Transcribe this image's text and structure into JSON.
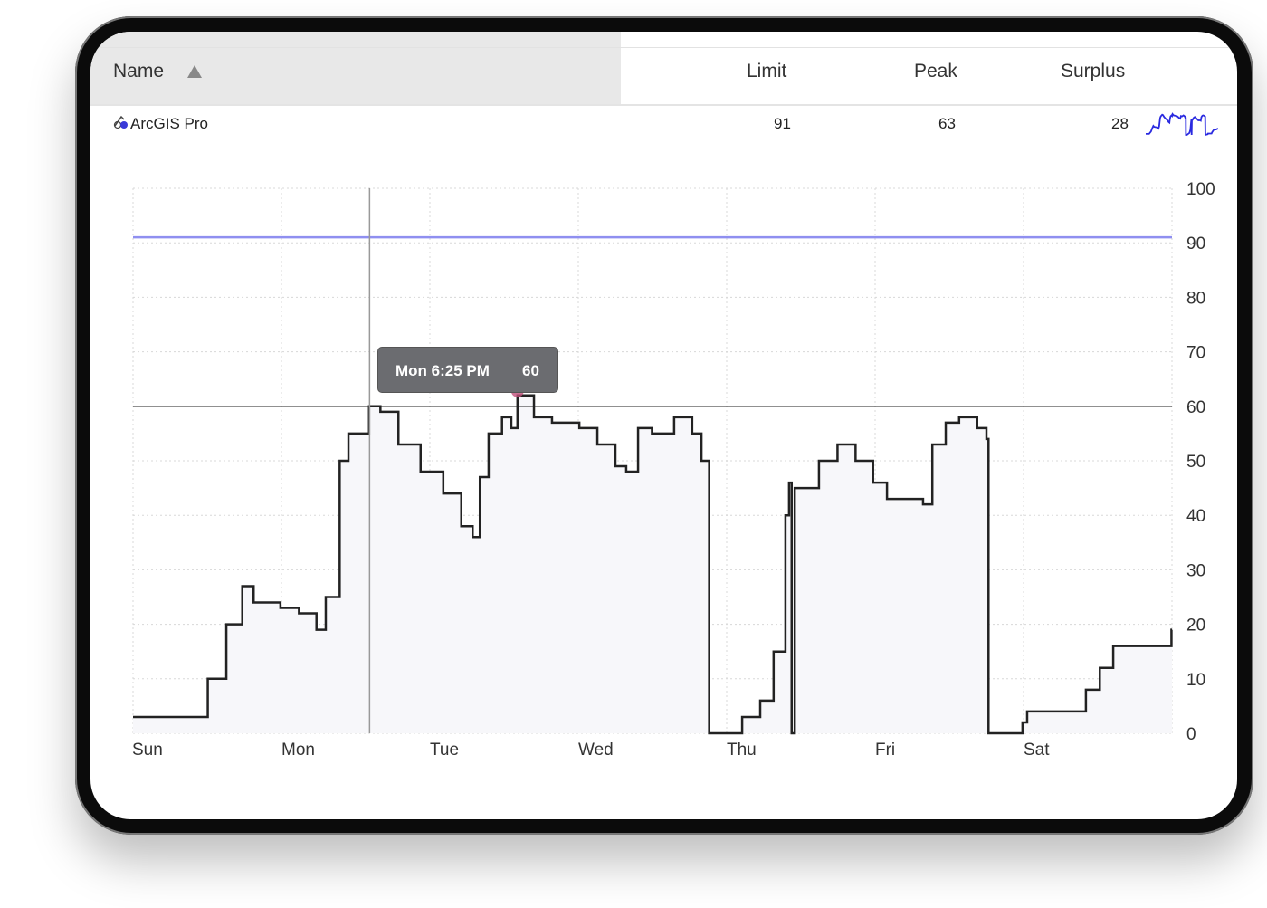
{
  "table": {
    "columns": [
      "Name",
      "Limit",
      "Peak",
      "Surplus"
    ],
    "sort": {
      "column": "Name",
      "direction": "ascending",
      "icon": "triangle-up-icon"
    },
    "rows": [
      {
        "icon": "arcgis-pro-icon",
        "name": "ArcGIS Pro",
        "limit": "91",
        "peak": "63",
        "surplus": "28"
      }
    ]
  },
  "colors": {
    "limit_line": "#8f8ff0",
    "usage_line": "#222222",
    "sparkline": "#2a2ae0",
    "area_fill": "#f7f7fa",
    "highlight": "#c0507a"
  },
  "tooltip": {
    "label": "Mon 6:25 PM",
    "value": "60"
  },
  "chart_data": {
    "type": "line",
    "step": true,
    "x_categories": [
      "Sun",
      "Mon",
      "Tue",
      "Wed",
      "Thu",
      "Fri",
      "Sat"
    ],
    "y_ticks": [
      "0",
      "10",
      "20",
      "30",
      "40",
      "50",
      "60",
      "70",
      "80",
      "90",
      "100"
    ],
    "ylim": [
      0,
      100
    ],
    "y_axis_side": "right",
    "grid": true,
    "reference_lines": [
      {
        "value": 91,
        "color": "#8f8ff0"
      },
      {
        "value": 60,
        "color": "#222222"
      }
    ],
    "cursor": "Mon 14:15",
    "highlight_point": [
      "Tue 14:10",
      62
    ],
    "series": [
      {
        "values": [
          [
            "Sun 00:00",
            3
          ],
          [
            "Sun 07:45",
            3
          ],
          [
            "Sun 12:05",
            10
          ],
          [
            "Sun 15:05",
            20
          ],
          [
            "Sun 17:40",
            27
          ],
          [
            "Sun 19:30",
            24
          ],
          [
            "Sun 23:50",
            23
          ],
          [
            "Mon 02:50",
            22
          ],
          [
            "Mon 05:40",
            19
          ],
          [
            "Mon 07:10",
            25
          ],
          [
            "Mon 09:25",
            50
          ],
          [
            "Mon 10:50",
            55
          ],
          [
            "Mon 14:10",
            60
          ],
          [
            "Mon 16:00",
            59
          ],
          [
            "Mon 18:55",
            53
          ],
          [
            "Mon 22:30",
            48
          ],
          [
            "Tue 02:10",
            44
          ],
          [
            "Tue 05:05",
            38
          ],
          [
            "Tue 06:55",
            36
          ],
          [
            "Tue 08:05",
            47
          ],
          [
            "Tue 09:30",
            55
          ],
          [
            "Tue 11:40",
            58
          ],
          [
            "Tue 13:10",
            56
          ],
          [
            "Tue 14:10",
            62
          ],
          [
            "Tue 16:50",
            58
          ],
          [
            "Tue 19:45",
            57
          ],
          [
            "Wed 00:10",
            56
          ],
          [
            "Wed 03:05",
            53
          ],
          [
            "Wed 06:00",
            49
          ],
          [
            "Wed 07:45",
            48
          ],
          [
            "Wed 09:40",
            56
          ],
          [
            "Wed 11:55",
            55
          ],
          [
            "Wed 15:30",
            58
          ],
          [
            "Wed 18:25",
            55
          ],
          [
            "Wed 19:55",
            50
          ],
          [
            "Wed 21:05",
            50
          ],
          [
            "Wed 21:10",
            0
          ],
          [
            "Wed 23:35",
            0
          ],
          [
            "Thu 02:30",
            3
          ],
          [
            "Thu 05:25",
            6
          ],
          [
            "Thu 07:35",
            15
          ],
          [
            "Thu 09:30",
            40
          ],
          [
            "Thu 10:05",
            46
          ],
          [
            "Thu 10:30",
            0
          ],
          [
            "Thu 11:00",
            45
          ],
          [
            "Thu 12:45",
            45
          ],
          [
            "Thu 14:55",
            50
          ],
          [
            "Thu 17:55",
            53
          ],
          [
            "Thu 20:50",
            50
          ],
          [
            "Thu 23:40",
            46
          ],
          [
            "Fri 01:55",
            43
          ],
          [
            "Fri 06:20",
            43
          ],
          [
            "Fri 07:45",
            42
          ],
          [
            "Fri 09:15",
            53
          ],
          [
            "Fri 11:25",
            57
          ],
          [
            "Fri 13:35",
            58
          ],
          [
            "Fri 16:30",
            56
          ],
          [
            "Fri 18:00",
            54
          ],
          [
            "Fri 18:20",
            0
          ],
          [
            "Fri 23:50",
            2
          ],
          [
            "Sat 00:35",
            4
          ],
          [
            "Sat 08:35",
            4
          ],
          [
            "Sat 10:05",
            8
          ],
          [
            "Sat 12:20",
            12
          ],
          [
            "Sat 14:30",
            16
          ],
          [
            "Sat 18:55",
            16
          ],
          [
            "Sat 23:55",
            19
          ]
        ]
      }
    ]
  }
}
